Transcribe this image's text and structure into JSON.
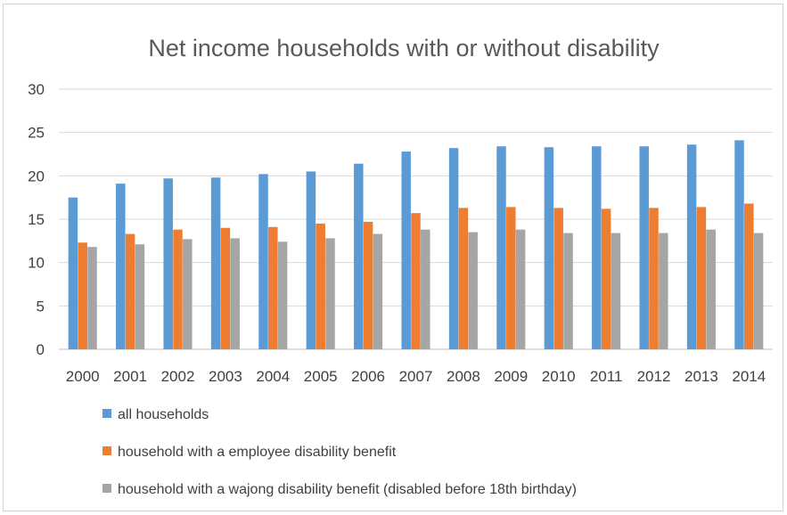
{
  "chart_data": {
    "type": "bar",
    "title": "Net income households  with or without disability",
    "xlabel": "",
    "ylabel": "",
    "ylim": [
      0,
      30
    ],
    "yticks": [
      0,
      5,
      10,
      15,
      20,
      25,
      30
    ],
    "grid": true,
    "legend_position": "bottom",
    "categories": [
      "2000",
      "2001",
      "2002",
      "2003",
      "2004",
      "2005",
      "2006",
      "2007",
      "2008",
      "2009",
      "2010",
      "2011",
      "2012",
      "2013",
      "2014"
    ],
    "series": [
      {
        "name": "all households",
        "color": "#5b9bd5",
        "values": [
          17.5,
          19.1,
          19.7,
          19.8,
          20.2,
          20.5,
          21.4,
          22.8,
          23.2,
          23.4,
          23.3,
          23.4,
          23.4,
          23.6,
          24.1
        ]
      },
      {
        "name": "household with a employee disability benefit",
        "color": "#ed7d31",
        "values": [
          12.3,
          13.3,
          13.8,
          14.0,
          14.1,
          14.5,
          14.7,
          15.7,
          16.3,
          16.4,
          16.3,
          16.2,
          16.3,
          16.4,
          16.8
        ]
      },
      {
        "name": "household with a wajong disability benefit (disabled before 18th birthday)",
        "color": "#a5a5a5",
        "values": [
          11.8,
          12.1,
          12.7,
          12.8,
          12.4,
          12.8,
          13.3,
          13.8,
          13.5,
          13.8,
          13.4,
          13.4,
          13.4,
          13.8,
          13.4
        ]
      }
    ]
  }
}
